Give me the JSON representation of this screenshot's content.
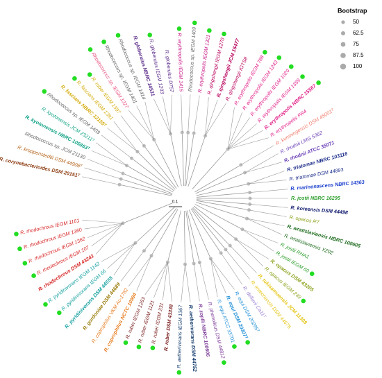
{
  "legend": {
    "title": "Bootstrap",
    "items": [
      50,
      62.5,
      75,
      87.5,
      100
    ]
  },
  "scale_bar": "0.1",
  "leaves": [
    {
      "label": "R. corynebacterioides DSM 20151ᵀ",
      "color": "#8b3a0f",
      "bold": true,
      "dot": false
    },
    {
      "label": "R. kroppenstedtii DSM 44908ᵀ",
      "color": "#b5651d",
      "bold": false,
      "dot": false
    },
    {
      "label": "Rhodococcus sp. JCM 21130",
      "color": "#666666",
      "bold": false,
      "dot": false
    },
    {
      "label": "R. kyotonensis NBRC 105863ᵀ",
      "color": "#17a589",
      "bold": true,
      "dot": false
    },
    {
      "label": "R. kyotonensis JCM 23211ᵀ",
      "color": "#17a589",
      "bold": false,
      "dot": false
    },
    {
      "label": "Rhodococcus sp. IEGM 1408",
      "color": "#666666",
      "bold": false,
      "dot": true
    },
    {
      "label": "R. fascians NBRC 12155ᵀ",
      "color": "#d4ac0d",
      "bold": true,
      "dot": false
    },
    {
      "label": "R. fascians IEGM 1391",
      "color": "#d4ac0d",
      "bold": false,
      "dot": true
    },
    {
      "label": "R. ruber IEGM 1397",
      "color": "#d4ac0d",
      "bold": false,
      "dot": true
    },
    {
      "label": "Rhodococcus sp. IEGM 1327",
      "color": "#e75480",
      "bold": false,
      "dot": true
    },
    {
      "label": "Rhodococcus sp. IEGM 1401",
      "color": "#666666",
      "bold": false,
      "dot": true
    },
    {
      "label": "Rhodococcus sp. IEGM 1414",
      "color": "#666666",
      "bold": false,
      "dot": true
    },
    {
      "label": "R. globerulus NBRC 14531",
      "color": "#5b2c8a",
      "bold": true,
      "dot": false
    },
    {
      "label": "R. globerulus IEGM 1203",
      "color": "#5b2c8a",
      "bold": false,
      "dot": true
    },
    {
      "label": "R. globerulus D757",
      "color": "#5b2c8a",
      "bold": false,
      "dot": false
    },
    {
      "label": "R. erythropolis IEGM 1415",
      "color": "#c71585",
      "bold": false,
      "dot": true
    },
    {
      "label": "Rhodococcus sp. IEGM 1409",
      "color": "#666666",
      "bold": false,
      "dot": true
    },
    {
      "label": "R. erythropolis IEGM 1321",
      "color": "#c71585",
      "bold": false,
      "dot": true
    },
    {
      "label": "R. qingshengii IEGM 1270",
      "color": "#b8005c",
      "bold": false,
      "dot": true
    },
    {
      "label": "R. qingshengii JCM 15477",
      "color": "#b8005c",
      "bold": true,
      "dot": false
    },
    {
      "label": "R. qingshengii IGTS8",
      "color": "#b8005c",
      "bold": false,
      "dot": false
    },
    {
      "label": "R. erythropolis IEGM 788",
      "color": "#e0218a",
      "bold": false,
      "dot": true
    },
    {
      "label": "R. erythropolis IEGM 1243",
      "color": "#e0218a",
      "bold": false,
      "dot": true
    },
    {
      "label": "R. erythropolis IEGM 1020",
      "color": "#e0218a",
      "bold": false,
      "dot": true
    },
    {
      "label": "R. erythropolis IEGM 1399",
      "color": "#e0218a",
      "bold": false,
      "dot": true
    },
    {
      "label": "R. erythropolis NBRC 15567",
      "color": "#e0218a",
      "bold": true,
      "dot": true
    },
    {
      "label": "R. erythropolis PR4",
      "color": "#e0218a",
      "bold": false,
      "dot": false
    },
    {
      "label": "R. kunmingensis DSM 45001ᵀ",
      "color": "#f08070",
      "bold": false,
      "dot": false
    },
    {
      "label": "R. rhodnii LMG 5362",
      "color": "#6a3fb5",
      "bold": false,
      "dot": false
    },
    {
      "label": "R. rhodnii ATCC 35071",
      "color": "#6a3fb5",
      "bold": true,
      "dot": false
    },
    {
      "label": "R. triatomae NBRC 103116",
      "color": "#1f2f8a",
      "bold": true,
      "dot": false
    },
    {
      "label": "R. triatomae DSM 44893",
      "color": "#1f2f8a",
      "bold": false,
      "dot": false
    },
    {
      "label": "R. marinonascens NBRC 14363",
      "color": "#1a3fcc",
      "bold": true,
      "dot": false
    },
    {
      "label": "R. jostii NBRC 16295",
      "color": "#2e9e2e",
      "bold": true,
      "dot": false
    },
    {
      "label": "R. koreensis DSM 44498",
      "color": "#101a6e",
      "bold": true,
      "dot": false
    },
    {
      "label": "R. opacus R7",
      "color": "#8aa11c",
      "bold": false,
      "dot": false
    },
    {
      "label": "R. wratislaviensis NBRC 100605",
      "color": "#1d6b1d",
      "bold": true,
      "dot": false
    },
    {
      "label": "R. wratislaviensis YZ02",
      "color": "#1d6b1d",
      "bold": false,
      "dot": false
    },
    {
      "label": "R. jostii RHA1",
      "color": "#2e9e2e",
      "bold": false,
      "dot": false
    },
    {
      "label": "R. jostii IEGM 60",
      "color": "#2e9e2e",
      "bold": false,
      "dot": true
    },
    {
      "label": "R. opacus DSM 43205",
      "color": "#8aa11c",
      "bold": true,
      "dot": false
    },
    {
      "label": "R. opacus IEGM 249",
      "color": "#8aa11c",
      "bold": false,
      "dot": true
    },
    {
      "label": "R. tukisamuensis JCM 11308",
      "color": "#e6c619",
      "bold": true,
      "dot": false
    },
    {
      "label": "R. imtechensis DSM 44675",
      "color": "#e6c619",
      "bold": false,
      "dot": false
    },
    {
      "label": "R. defluvii Ca11ᵀ",
      "color": "#9b7fd4",
      "bold": false,
      "dot": false
    },
    {
      "label": "R. equi DSM 20295ᵀ",
      "color": "#1f8fd6",
      "bold": false,
      "dot": false
    },
    {
      "label": "R. equi DSM 20307ᵀ",
      "color": "#1f8fd6",
      "bold": true,
      "dot": true
    },
    {
      "label": "R. equi ATCC 33701",
      "color": "#1f8fd6",
      "bold": false,
      "dot": true
    },
    {
      "label": "R. phenolicus DSM 44812",
      "color": "#7d3c98",
      "bold": false,
      "dot": true
    },
    {
      "label": "R. zopfii NBRC 100606",
      "color": "#7d3c98",
      "bold": true,
      "dot": false
    },
    {
      "label": "R. aetherivorans DSM 44752",
      "color": "#123a6b",
      "bold": true,
      "dot": false
    },
    {
      "label": "R. aetherivorans IEGM 1367",
      "color": "#123a6b",
      "bold": false,
      "dot": true
    },
    {
      "label": "R. ruber DSM 43338",
      "color": "#7a1f1f",
      "bold": true,
      "dot": false
    },
    {
      "label": "R. ruber IEGM 231",
      "color": "#7a1f1f",
      "bold": false,
      "dot": true
    },
    {
      "label": "R. ruber IEGM 1121",
      "color": "#7a1f1f",
      "bold": false,
      "dot": true
    },
    {
      "label": "R. ruber IEGM 1263",
      "color": "#7a1f1f",
      "bold": false,
      "dot": true
    },
    {
      "label": "R. coprophilus NCTC 10994",
      "color": "#e67e22",
      "bold": true,
      "dot": false
    },
    {
      "label": "R. coprophilus VKM Ac-1782",
      "color": "#e67e22",
      "bold": false,
      "dot": false
    },
    {
      "label": "R. gordoniae DSM 44689",
      "color": "#9a7d0a",
      "bold": true,
      "dot": false
    },
    {
      "label": "R. pyridinivorans DSM 44555",
      "color": "#16a0a0",
      "bold": true,
      "dot": false
    },
    {
      "label": "R. pyridinivorans IEGM 66",
      "color": "#16a0a0",
      "bold": false,
      "dot": true
    },
    {
      "label": "R. pyridinivorans IEGM 1142",
      "color": "#16a0a0",
      "bold": false,
      "dot": true
    },
    {
      "label": "R. rhodochrous DSM 43241",
      "color": "#d62828",
      "bold": true,
      "dot": false
    },
    {
      "label": "R. rhodochrous IEGM 107",
      "color": "#d62828",
      "bold": false,
      "dot": true
    },
    {
      "label": "R. rhodochrous IEGM 1362",
      "color": "#d62828",
      "bold": false,
      "dot": true
    },
    {
      "label": "R. rhodochrous IEGM 1360",
      "color": "#d62828",
      "bold": false,
      "dot": true
    },
    {
      "label": "R. rhodochrous IEGM 1161",
      "color": "#d62828",
      "bold": false,
      "dot": true
    }
  ]
}
